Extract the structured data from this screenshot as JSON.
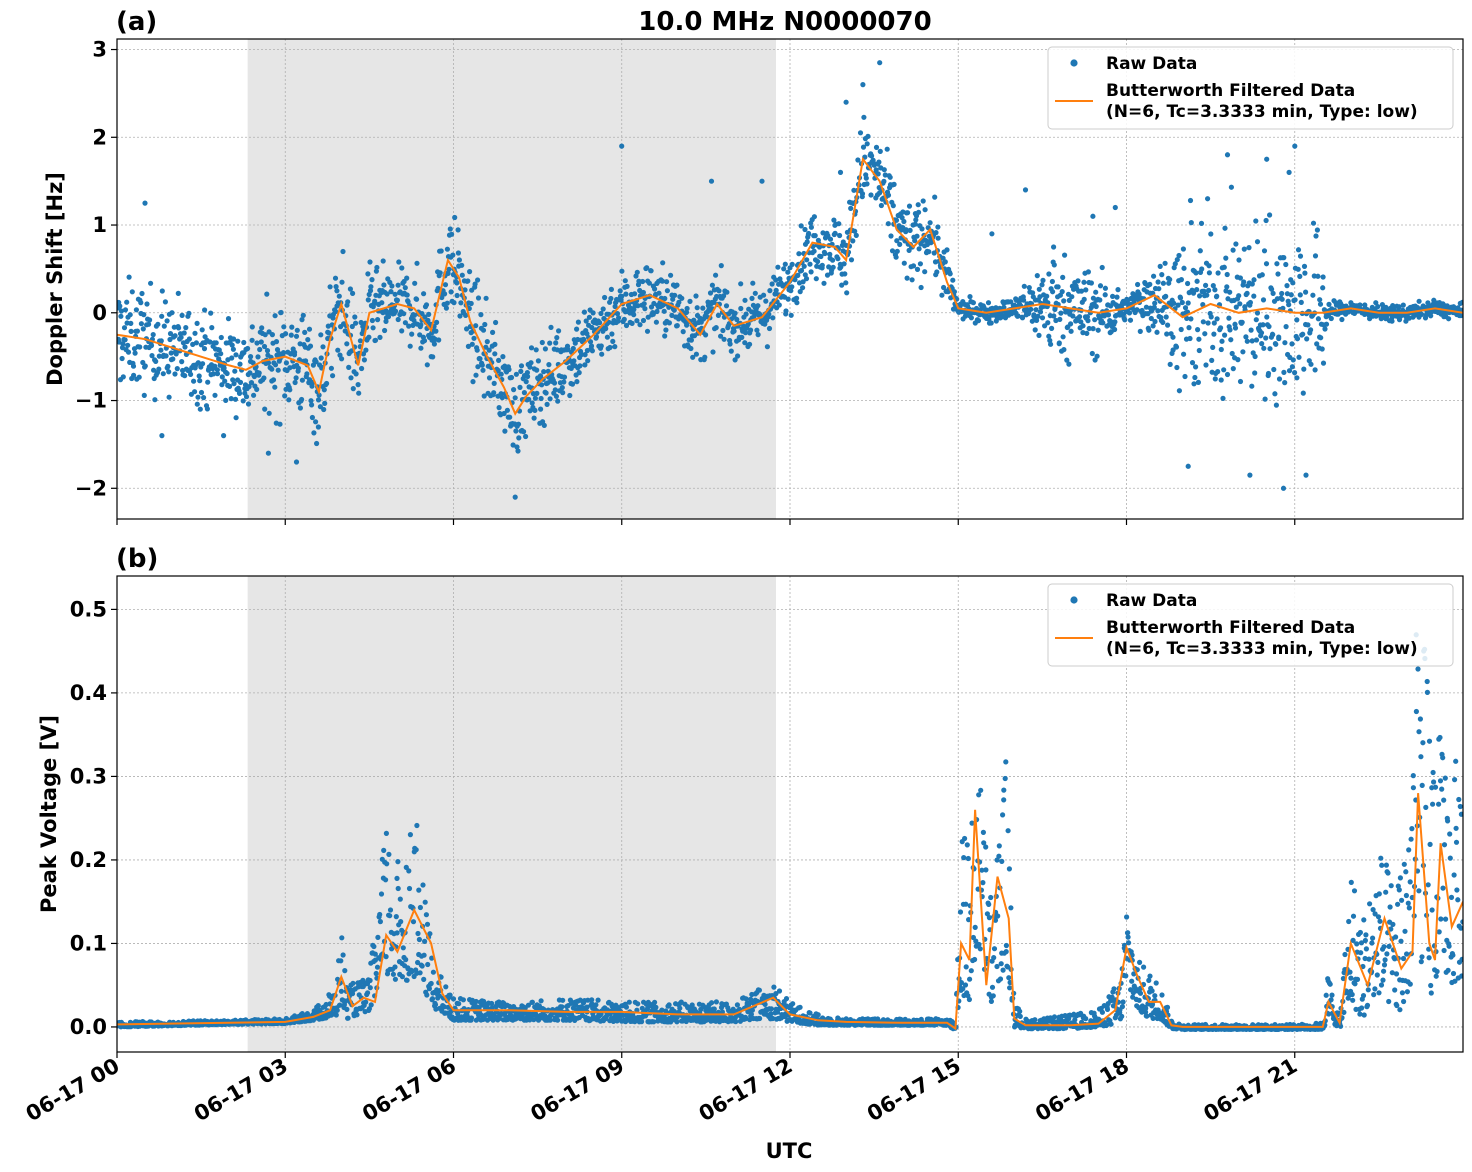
{
  "figure": {
    "title": "10.0 MHz N0000070",
    "xlabel": "UTC"
  },
  "colors": {
    "raw": "#1f77b4",
    "filtered": "#ff7f0e",
    "shade": "#e6e6e6",
    "grid": "#b0b0b0"
  },
  "legend": {
    "raw_label": "Raw Data",
    "filtered_label_line1": "Butterworth Filtered Data",
    "filtered_label_line2": "(N=6, Tc=3.3333 min, Type: low)"
  },
  "chart_data": [
    {
      "type": "scatter",
      "panel": "(a)",
      "ylabel": "Doppler Shift [Hz]",
      "xlim_hours": [
        0,
        24
      ],
      "ylim": [
        -2.35,
        3.12
      ],
      "yticks": [
        -2,
        -1,
        0,
        1,
        2,
        3
      ],
      "ytick_labels": [
        "−2",
        "−1",
        "0",
        "1",
        "2",
        "3"
      ],
      "xticks_hours": [
        0,
        3,
        6,
        9,
        12,
        15,
        18,
        21
      ],
      "xtick_labels": [
        "06-17 00",
        "06-17 03",
        "06-17 06",
        "06-17 09",
        "06-17 12",
        "06-17 15",
        "06-17 18",
        "06-17 21"
      ],
      "shaded_interval_hours": [
        2.33,
        11.75
      ],
      "grid": true,
      "legend_position": "top-right",
      "series": [
        {
          "name": "Butterworth Filtered Data",
          "x_hours": [
            0,
            0.5,
            1,
            1.5,
            2,
            2.3,
            2.6,
            3,
            3.4,
            3.6,
            3.8,
            4.0,
            4.3,
            4.5,
            5,
            5.3,
            5.6,
            5.9,
            6.1,
            6.3,
            6.6,
            6.9,
            7.1,
            7.3,
            7.6,
            8,
            8.5,
            9,
            9.5,
            10,
            10.4,
            10.7,
            11,
            11.5,
            12,
            12.4,
            12.8,
            13.0,
            13.3,
            13.6,
            13.9,
            14.2,
            14.5,
            14.8,
            15,
            15.5,
            16,
            16.5,
            17,
            17.5,
            18,
            18.5,
            19,
            19.5,
            20,
            20.5,
            21,
            21.5,
            22,
            22.5,
            23,
            23.5,
            24
          ],
          "y": [
            -0.25,
            -0.3,
            -0.4,
            -0.5,
            -0.6,
            -0.65,
            -0.55,
            -0.5,
            -0.6,
            -0.9,
            -0.3,
            0.1,
            -0.6,
            0.0,
            0.1,
            0.05,
            -0.2,
            0.6,
            0.4,
            -0.1,
            -0.5,
            -0.85,
            -1.15,
            -0.95,
            -0.75,
            -0.55,
            -0.25,
            0.1,
            0.2,
            0.05,
            -0.25,
            0.1,
            -0.15,
            -0.05,
            0.35,
            0.8,
            0.75,
            0.6,
            1.75,
            1.5,
            0.95,
            0.75,
            0.95,
            0.35,
            0.05,
            0.0,
            0.05,
            0.1,
            0.05,
            0.0,
            0.05,
            0.2,
            -0.05,
            0.1,
            0.0,
            0.05,
            0.0,
            0.0,
            0.05,
            0.0,
            0.0,
            0.05,
            0.0
          ]
        },
        {
          "name": "Raw Data",
          "spread_x_hours": [
            0,
            2,
            3,
            4,
            5,
            6,
            7,
            8,
            9,
            10,
            11,
            12,
            12.8,
            13.3,
            14,
            14.8,
            15,
            16,
            16.7,
            17,
            17.5,
            18,
            18.5,
            18.8,
            19,
            20,
            21,
            21.5,
            21.6,
            22,
            24
          ],
          "spread_y": [
            0.55,
            0.45,
            0.55,
            0.55,
            0.35,
            0.5,
            0.45,
            0.4,
            0.35,
            0.35,
            0.3,
            0.3,
            0.35,
            0.45,
            0.45,
            0.3,
            0.1,
            0.1,
            0.55,
            0.45,
            0.45,
            0.1,
            0.45,
            0.45,
            0.85,
            0.9,
            0.9,
            0.8,
            0.1,
            0.08,
            0.08
          ],
          "outliers": [
            [
              0.5,
              1.25
            ],
            [
              0.8,
              -1.4
            ],
            [
              1.9,
              -1.4
            ],
            [
              2.7,
              -1.6
            ],
            [
              3.2,
              -1.7
            ],
            [
              7.1,
              -2.1
            ],
            [
              9.0,
              1.9
            ],
            [
              10.6,
              1.5
            ],
            [
              11.5,
              1.5
            ],
            [
              12.9,
              1.6
            ],
            [
              13.0,
              2.4
            ],
            [
              13.3,
              2.6
            ],
            [
              13.6,
              2.85
            ],
            [
              15.6,
              0.9
            ],
            [
              16.2,
              1.4
            ],
            [
              16.7,
              0.75
            ],
            [
              17.4,
              1.1
            ],
            [
              17.8,
              1.2
            ],
            [
              19.8,
              1.8
            ],
            [
              20.5,
              1.75
            ],
            [
              20.9,
              1.6
            ],
            [
              21.0,
              1.9
            ],
            [
              20.2,
              -1.85
            ],
            [
              20.8,
              -2.0
            ],
            [
              21.2,
              -1.85
            ],
            [
              19.1,
              -1.75
            ]
          ]
        }
      ]
    },
    {
      "type": "scatter",
      "panel": "(b)",
      "ylabel": "Peak Voltage [V]",
      "xlim_hours": [
        0,
        24
      ],
      "ylim": [
        -0.03,
        0.54
      ],
      "yticks": [
        0.0,
        0.1,
        0.2,
        0.3,
        0.4,
        0.5
      ],
      "ytick_labels": [
        "0.0",
        "0.1",
        "0.2",
        "0.3",
        "0.4",
        "0.5"
      ],
      "xticks_hours": [
        0,
        3,
        6,
        9,
        12,
        15,
        18,
        21
      ],
      "xtick_labels": [
        "06-17 00",
        "06-17 03",
        "06-17 06",
        "06-17 09",
        "06-17 12",
        "06-17 15",
        "06-17 18",
        "06-17 21"
      ],
      "shaded_interval_hours": [
        2.33,
        11.75
      ],
      "grid": true,
      "legend_position": "top-right",
      "series": [
        {
          "name": "Butterworth Filtered Data",
          "x_hours": [
            0,
            2,
            3,
            3.5,
            3.8,
            4.0,
            4.2,
            4.4,
            4.6,
            4.8,
            5.0,
            5.3,
            5.6,
            5.8,
            6.0,
            7,
            8,
            9,
            10,
            11,
            11.7,
            12,
            12.5,
            13,
            14,
            14.8,
            14.95,
            15.05,
            15.2,
            15.3,
            15.5,
            15.7,
            15.9,
            16.0,
            16.2,
            16.5,
            17,
            17.5,
            17.8,
            18.0,
            18.2,
            18.4,
            18.6,
            18.8,
            19,
            20,
            21,
            21.5,
            21.6,
            21.8,
            22,
            22.3,
            22.6,
            22.9,
            23.1,
            23.2,
            23.4,
            23.5,
            23.6,
            23.8,
            24
          ],
          "y": [
            0.003,
            0.005,
            0.006,
            0.012,
            0.02,
            0.06,
            0.025,
            0.035,
            0.03,
            0.11,
            0.09,
            0.14,
            0.1,
            0.04,
            0.02,
            0.02,
            0.018,
            0.018,
            0.015,
            0.015,
            0.035,
            0.015,
            0.008,
            0.006,
            0.005,
            0.005,
            -0.002,
            0.1,
            0.08,
            0.26,
            0.05,
            0.18,
            0.13,
            0.01,
            0.002,
            0.002,
            0.002,
            0.004,
            0.02,
            0.095,
            0.06,
            0.03,
            0.03,
            0.002,
            0.0,
            0.0,
            0.0,
            0.0,
            0.03,
            0.005,
            0.1,
            0.05,
            0.13,
            0.07,
            0.09,
            0.28,
            0.1,
            0.08,
            0.22,
            0.12,
            0.15
          ]
        },
        {
          "name": "Raw Data",
          "envelope_x_hours": [
            0,
            2,
            3,
            3.5,
            3.9,
            4.0,
            4.1,
            4.5,
            4.8,
            5.0,
            5.3,
            5.5,
            5.7,
            6.0,
            7,
            8,
            9,
            10,
            11,
            11.7,
            12,
            12.5,
            13,
            14,
            14.8,
            14.95,
            15.05,
            15.2,
            15.35,
            15.6,
            15.85,
            16.0,
            16.2,
            16.5,
            17,
            17.5,
            17.9,
            18.0,
            18.2,
            18.4,
            18.6,
            18.8,
            19,
            20,
            21,
            21.5,
            21.6,
            21.8,
            22,
            22.2,
            22.5,
            22.8,
            23.0,
            23.2,
            23.4,
            23.6,
            23.8,
            24
          ],
          "envelope_low": [
            0.0,
            0.003,
            0.004,
            0.008,
            0.012,
            0.03,
            0.01,
            0.02,
            0.06,
            0.05,
            0.06,
            0.04,
            0.02,
            0.008,
            0.008,
            0.008,
            0.006,
            0.006,
            0.006,
            0.01,
            0.006,
            0.002,
            0.002,
            0.002,
            0.002,
            -0.005,
            0.04,
            0.03,
            0.1,
            0.02,
            0.08,
            0.0,
            -0.002,
            -0.002,
            -0.002,
            0.0,
            0.005,
            0.05,
            0.02,
            0.01,
            0.01,
            -0.002,
            -0.003,
            -0.003,
            -0.003,
            -0.003,
            0.01,
            -0.002,
            0.03,
            0.01,
            0.04,
            0.02,
            0.02,
            0.1,
            0.02,
            0.08,
            0.05,
            0.06
          ],
          "envelope_high": [
            0.006,
            0.008,
            0.01,
            0.02,
            0.05,
            0.12,
            0.05,
            0.06,
            0.25,
            0.2,
            0.27,
            0.15,
            0.07,
            0.035,
            0.03,
            0.035,
            0.03,
            0.03,
            0.03,
            0.055,
            0.03,
            0.015,
            0.01,
            0.01,
            0.01,
            0.01,
            0.28,
            0.22,
            0.34,
            0.15,
            0.33,
            0.03,
            0.01,
            0.01,
            0.015,
            0.02,
            0.06,
            0.16,
            0.08,
            0.07,
            0.05,
            0.01,
            0.003,
            0.003,
            0.003,
            0.005,
            0.07,
            0.01,
            0.2,
            0.13,
            0.22,
            0.17,
            0.28,
            0.52,
            0.42,
            0.35,
            0.3,
            0.36
          ]
        }
      ]
    }
  ]
}
